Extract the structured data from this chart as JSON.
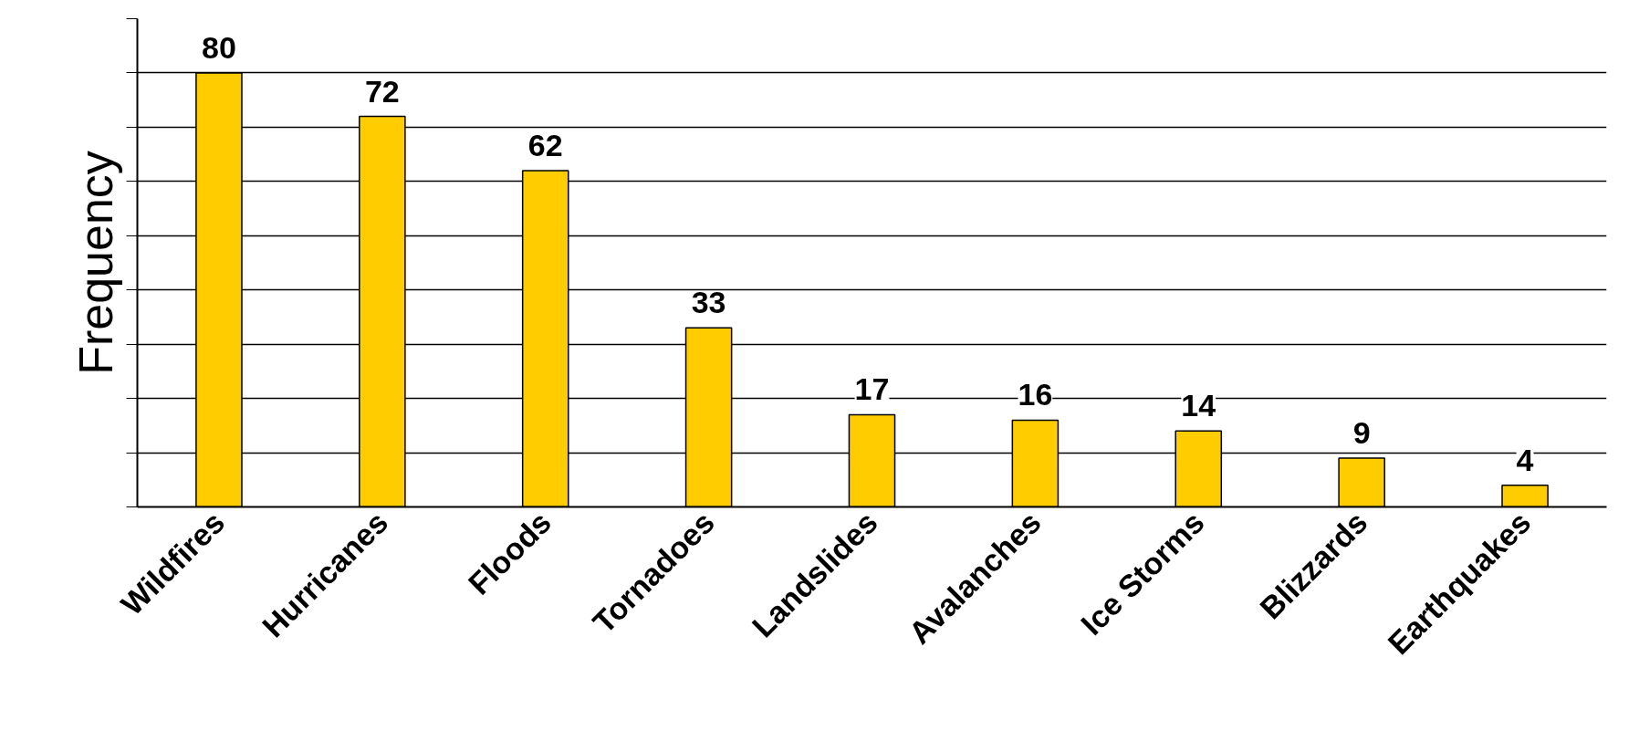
{
  "chart_data": {
    "type": "bar",
    "ylabel": "Frequency",
    "categories": [
      "Wildfires",
      "Hurricanes",
      "Floods",
      "Tornadoes",
      "Landslides",
      "Avalanches",
      "Ice Storms",
      "Blizzards",
      "Earthquakes"
    ],
    "values": [
      80,
      72,
      62,
      33,
      17,
      16,
      14,
      9,
      4
    ],
    "color": "#ffcc00",
    "ylim": [
      0,
      90
    ],
    "yticks": [
      {
        "value": 0,
        "label": null
      },
      {
        "value": 10,
        "label": null
      },
      {
        "value": 20,
        "label": null
      },
      {
        "value": 30,
        "label": null
      },
      {
        "value": 40,
        "label": null
      },
      {
        "value": 50,
        "label": null
      },
      {
        "value": 60,
        "label": null
      },
      {
        "value": 70,
        "label": null
      },
      {
        "value": 80,
        "label": null
      },
      {
        "value": 90,
        "label": null
      }
    ],
    "tick_labels": "x",
    "grid": "y",
    "data_labels": true
  }
}
